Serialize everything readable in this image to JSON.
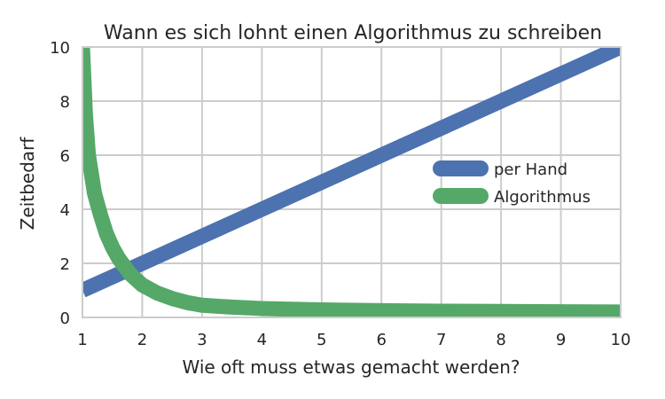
{
  "chart_data": {
    "type": "line",
    "title": "Wann es sich lohnt einen Algorithmus zu schreiben",
    "xlabel": "Wie oft muss etwas gemacht werden?",
    "ylabel": "Zeitbedarf",
    "xlim": [
      1,
      10
    ],
    "ylim": [
      0,
      10
    ],
    "xticks": [
      "1",
      "2",
      "3",
      "4",
      "5",
      "6",
      "7",
      "8",
      "9",
      "10"
    ],
    "yticks": [
      "0",
      "2",
      "4",
      "6",
      "8",
      "10"
    ],
    "grid": true,
    "legend_position": "center-right",
    "series": [
      {
        "name": "per Hand",
        "color": "#4c72b0",
        "x": [
          1,
          2,
          3,
          4,
          5,
          6,
          7,
          8,
          9,
          10
        ],
        "y": [
          1.0,
          2.0,
          3.0,
          4.0,
          5.0,
          6.0,
          7.0,
          8.0,
          9.0,
          10.0
        ]
      },
      {
        "name": "Algorithmus",
        "color": "#55a868",
        "x": [
          1.0,
          1.05,
          1.1,
          1.2,
          1.3,
          1.4,
          1.5,
          1.6,
          1.8,
          2.0,
          2.25,
          2.5,
          2.75,
          3.0,
          3.5,
          4.0,
          5.0,
          6.0,
          7.0,
          8.0,
          9.0,
          10.0
        ],
        "y": [
          10.0,
          7.5,
          6.0,
          4.6,
          3.8,
          3.1,
          2.6,
          2.2,
          1.6,
          1.2,
          0.9,
          0.7,
          0.55,
          0.45,
          0.38,
          0.33,
          0.28,
          0.25,
          0.23,
          0.22,
          0.21,
          0.2
        ]
      }
    ]
  }
}
